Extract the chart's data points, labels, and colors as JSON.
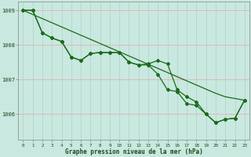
{
  "title": "Graphe pression niveau de la mer (hPa)",
  "bg_color": "#c8e8e0",
  "grid_color": "#b0d8cc",
  "line_color": "#1a6b1a",
  "ylim": [
    1005.25,
    1009.25
  ],
  "yticks": [
    1006,
    1007,
    1008,
    1009
  ],
  "x_labels": [
    "0",
    "1",
    "2",
    "3",
    "4",
    "5",
    "6",
    "7",
    "8",
    "9",
    "10",
    "11",
    "12",
    "13",
    "14",
    "15",
    "16",
    "17",
    "18",
    "19",
    "20",
    "21",
    "22",
    "23"
  ],
  "line_straight": [
    1009.0,
    1008.88,
    1008.76,
    1008.64,
    1008.52,
    1008.4,
    1008.28,
    1008.16,
    1008.04,
    1007.92,
    1007.8,
    1007.68,
    1007.56,
    1007.44,
    1007.32,
    1007.2,
    1007.08,
    1006.96,
    1006.84,
    1006.72,
    1006.6,
    1006.5,
    1006.45,
    1006.4
  ],
  "line_upper": [
    1009.0,
    1009.0,
    1008.35,
    1008.2,
    1008.1,
    1007.65,
    1007.55,
    1007.75,
    1007.78,
    1007.78,
    1007.78,
    1007.5,
    1007.42,
    1007.45,
    1007.55,
    1007.45,
    1006.7,
    1006.5,
    1006.35,
    1006.0,
    1005.75,
    1005.85,
    1005.88,
    1006.4
  ],
  "line_lower": [
    1009.0,
    1009.0,
    1008.35,
    1008.2,
    1008.1,
    1007.65,
    1007.55,
    1007.75,
    1007.78,
    1007.78,
    1007.78,
    1007.5,
    1007.42,
    1007.42,
    1007.15,
    1006.7,
    1006.65,
    1006.3,
    1006.25,
    1006.0,
    1005.75,
    1005.85,
    1005.88,
    1006.4
  ]
}
